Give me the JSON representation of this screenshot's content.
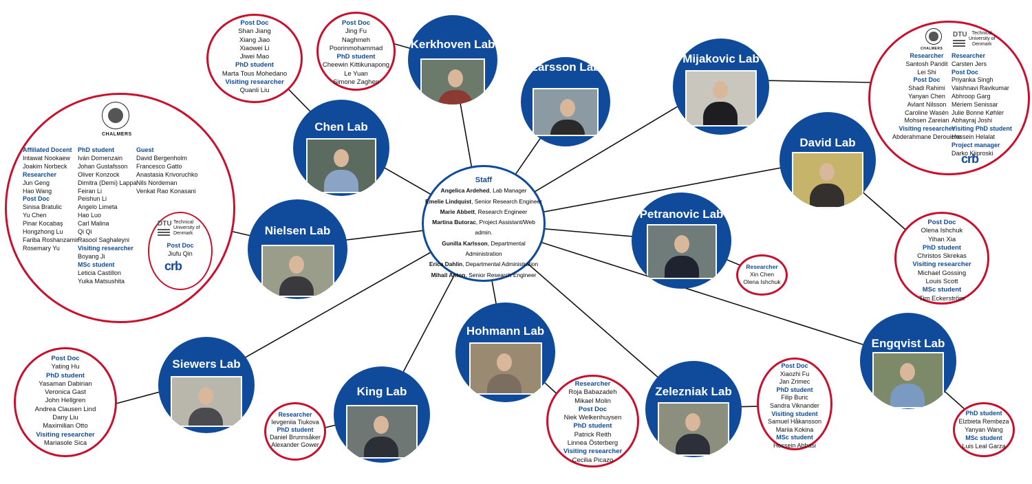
{
  "staff": {
    "heading": "Staff",
    "members": [
      {
        "name": "Angelica Ardehed",
        "role": ", Lab Manager"
      },
      {
        "name": "Emelie Lindquist",
        "role": ", Senior Research Engineer"
      },
      {
        "name": "Marie Abbett",
        "role": ", Research Engineer"
      },
      {
        "name": "Martina Butorac",
        "role": ", Project Assistant/Web admin."
      },
      {
        "name": "Gunilla Karlsson",
        "role": ", Departmental Administration"
      },
      {
        "name": "Erica Dahlin",
        "role": ", Departmental Administration"
      },
      {
        "name": "Mihail Anton",
        "role": ",  Senior Research Engineer"
      }
    ]
  },
  "labs": {
    "kerkhoven": "Kerkhoven Lab",
    "larsson": "Larsson Lab",
    "mijakovic": "Mijakovic Lab",
    "chen": "Chen Lab",
    "david": "David Lab",
    "petranovic": "Petranovic Lab",
    "nielsen": "Nielsen Lab",
    "hohmann": "Hohmann Lab",
    "engqvist": "Engqvist Lab",
    "siewers": "Siewers Lab",
    "king": "King Lab",
    "zelezniak": "Zelezniak Lab"
  },
  "groups": {
    "chen": [
      {
        "role": "Post Doc",
        "names": [
          "Shan Jiang",
          "Xiang Jiao",
          "Xiaowei Li",
          "Jiwei Mao"
        ]
      },
      {
        "role": "PhD student",
        "names": [
          "Marta Tous Mohedano"
        ]
      },
      {
        "role": "Visiting researcher",
        "names": [
          "Quanli Liu"
        ]
      }
    ],
    "kerkhoven": [
      {
        "role": "Post Doc",
        "names": [
          "Jing Fu",
          "Naghmeh Poorinmohammad"
        ]
      },
      {
        "role": "PhD student",
        "names": [
          "Cheewin Kittikunapong",
          "Le Yuan",
          "Simone Zaghen"
        ]
      }
    ],
    "mijakovic_chalmers": [
      {
        "role": "Researcher",
        "names": [
          "Santosh Pandit",
          "Lei Shi"
        ]
      },
      {
        "role": "Post Doc",
        "names": [
          "Shadi Rahimi",
          "Yanyan Chen",
          "Avlant Nilsson",
          "Caroline Wasén",
          "Mohsen Zareian"
        ]
      },
      {
        "role": "Visiting researcher",
        "names": [
          "Abderahmane Derouiche"
        ]
      }
    ],
    "mijakovic_dtu": [
      {
        "role": "Researcher",
        "names": [
          "Carsten Jers"
        ]
      },
      {
        "role": "Post Doc",
        "names": [
          "Priyanka Singh",
          "Vaishnavi Ravikumar",
          "Abhroop Garg",
          "Mériem Senissar",
          "Julie Bonne Køhler",
          "Abhayraj Joshi"
        ]
      },
      {
        "role": "Visiting PhD student",
        "names": [
          "Hossein Helalat"
        ]
      },
      {
        "role": "Project manager",
        "names": [
          "Darko Kjiproski"
        ]
      }
    ],
    "nielsen_col1": [
      {
        "role": "Affiliated Docent",
        "names": [
          "Intawat Nookaew",
          "Joakim Norbeck"
        ]
      },
      {
        "role": "Researcher",
        "names": [
          "Jun Geng",
          "Hao Wang"
        ]
      },
      {
        "role": "Post Doc",
        "names": [
          "Sinisa Bratulic",
          "Yu Chen",
          "Pinar Kocabaş",
          "Hongzhong Lu",
          "Fariba Roshanzamir",
          "Rosemary Yu"
        ]
      }
    ],
    "nielsen_col2": [
      {
        "role": "PhD student",
        "names": [
          "Iván Domenzain",
          "Johan Gustafsson",
          "Oliver Konzock",
          "Dimitra (Demi) Lappa",
          "Feiran Li",
          "Peishun Li",
          "Angelo Limeta",
          "Hao Luo",
          "Carl Malina",
          "Qi Qi",
          "Rasool Saghaleyni"
        ]
      },
      {
        "role": "Visiting researcher",
        "names": [
          "Boyang Ji"
        ]
      },
      {
        "role": "MSc student",
        "names": [
          "Leticia Castillon",
          "Yuika Matsushita"
        ]
      }
    ],
    "nielsen_col3": [
      {
        "role": "Guest",
        "names": [
          "David Bergenholm",
          "Francesco Gatto",
          "Anastasia Krivoruchko",
          "Nils Nordeman",
          "Venkat Rao Konasani"
        ]
      }
    ],
    "nielsen_dtu": [
      {
        "role": "Post Doc",
        "names": [
          "Jiufu Qin"
        ]
      }
    ],
    "david": [
      {
        "role": "Post Doc",
        "names": [
          "Olena Ishchuk",
          "Yihan Xia"
        ]
      },
      {
        "role": "PhD student",
        "names": [
          "Christos Skrekas"
        ]
      },
      {
        "role": "Visiting researcher",
        "names": [
          "Michael Gossing",
          "Louis Scott"
        ]
      },
      {
        "role": "MSc student",
        "names": [
          "Tim Eckerström"
        ]
      }
    ],
    "petranovic": [
      {
        "role": "Researcher",
        "names": [
          "Xin Chen",
          "Olena Ishchuk"
        ]
      }
    ],
    "siewers": [
      {
        "role": "Post Doc",
        "names": [
          "Yating Hu"
        ]
      },
      {
        "role": "PhD student",
        "names": [
          "Yasaman Dabirian",
          "Veronica Gast",
          "John Hellgren",
          "Andrea Clausen Lind",
          "Dany Liu",
          "Maximilian Otto"
        ]
      },
      {
        "role": "Visiting researcher",
        "names": [
          "Mariasole Sica"
        ]
      }
    ],
    "king": [
      {
        "role": "Researcher",
        "names": [
          "Ievgeniia Tiukova"
        ]
      },
      {
        "role": "PhD student",
        "names": [
          "Daniel Brunnsåker",
          "Alexander Gower"
        ]
      }
    ],
    "hohmann": [
      {
        "role": "Researcher",
        "names": [
          "Roja Babazadeh",
          "Mikael Molin"
        ]
      },
      {
        "role": "Post Doc",
        "names": [
          "Niek Welkenhuysen"
        ]
      },
      {
        "role": "PhD student",
        "names": [
          "Patrick Reith",
          "Linnea Österberg"
        ]
      },
      {
        "role": "Visiting researcher",
        "names": [
          "Cecilia Picazo"
        ]
      }
    ],
    "zelezniak": [
      {
        "role": "Post Doc",
        "names": [
          "Xiaozhi Fu",
          "Jan Zrimec"
        ]
      },
      {
        "role": "PhD student",
        "names": [
          "Filip Buric",
          "Sandra Viknander"
        ]
      },
      {
        "role": "Visiting student",
        "names": [
          "Samuel Håkansson",
          "Mariia Kokina"
        ]
      },
      {
        "role": "MSc student",
        "names": [
          "Hossein Abbasi"
        ]
      }
    ],
    "engqvist": [
      {
        "role": "PhD student",
        "names": [
          "Elzbieta Rembeza",
          "Yanyan Wang"
        ]
      },
      {
        "role": "MSc student",
        "names": [
          "Luis Leal Garza"
        ]
      }
    ]
  },
  "logos": {
    "chalmers": "CHALMERS",
    "dtu": "DTU",
    "dtu_text": [
      "Technical",
      "University of",
      "Denmark"
    ],
    "crb": "crb"
  },
  "colors": {
    "lab_blue": "#0f4a9b",
    "bubble_red": "#c8102e",
    "role_blue": "#0f4a9b"
  }
}
